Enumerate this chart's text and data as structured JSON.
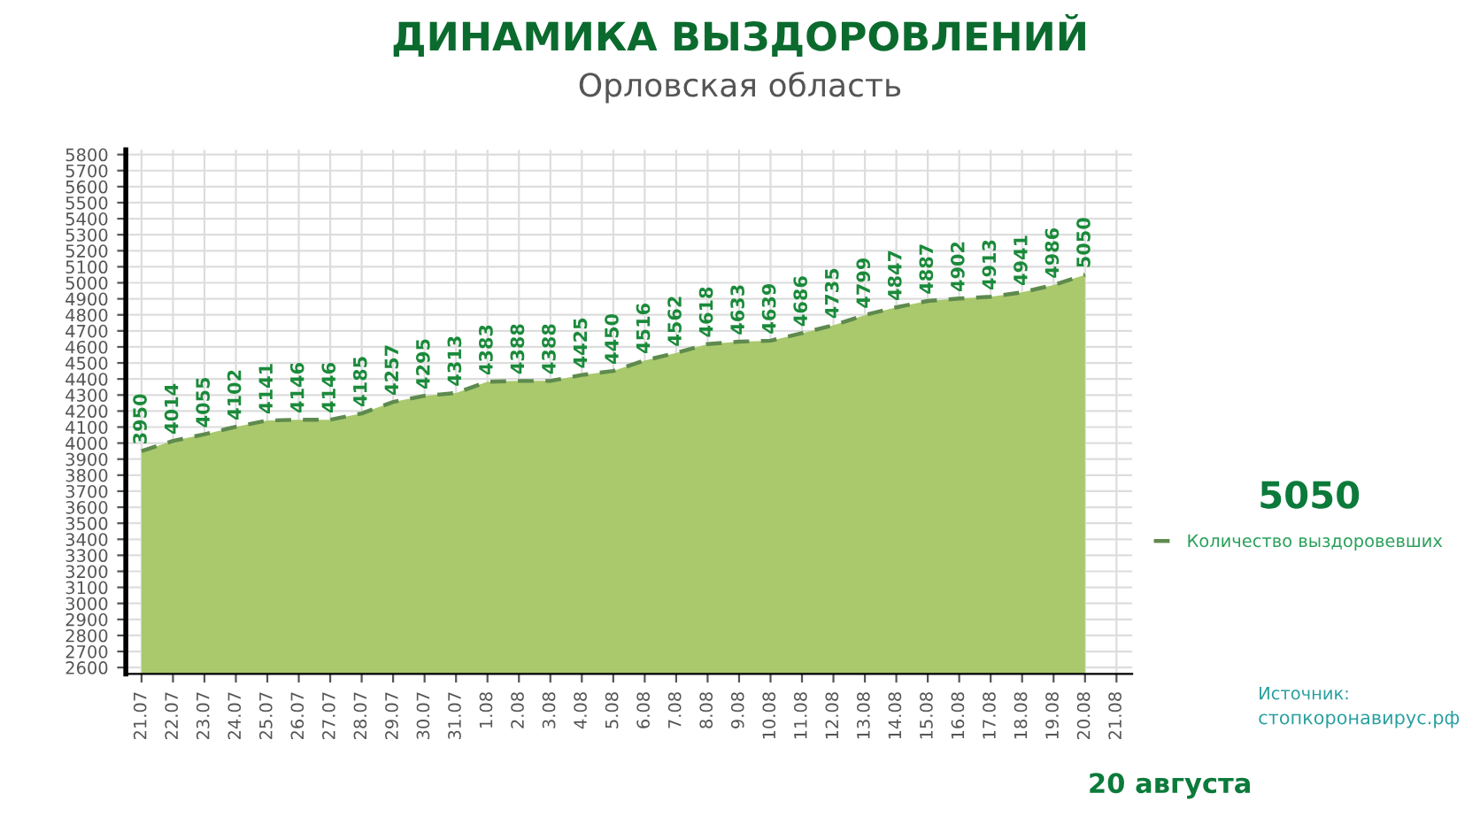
{
  "chart_data": {
    "type": "area",
    "title": "ДИНАМИКА ВЫЗДОРОВЛЕНИЙ",
    "subtitle": "Орловская область",
    "categories": [
      "21.07",
      "22.07",
      "23.07",
      "24.07",
      "25.07",
      "26.07",
      "27.07",
      "28.07",
      "29.07",
      "30.07",
      "31.07",
      "1.08",
      "2.08",
      "3.08",
      "4.08",
      "5.08",
      "6.08",
      "7.08",
      "8.08",
      "9.08",
      "10.08",
      "11.08",
      "12.08",
      "13.08",
      "14.08",
      "15.08",
      "16.08",
      "17.08",
      "18.08",
      "19.08",
      "20.08",
      "21.08"
    ],
    "series": [
      {
        "name": "Количество выздоровевших",
        "color": "#a9c96c",
        "values": [
          3950,
          4014,
          4055,
          4102,
          4141,
          4146,
          4146,
          4185,
          4257,
          4295,
          4313,
          4383,
          4388,
          4388,
          4425,
          4450,
          4516,
          4562,
          4618,
          4633,
          4639,
          4686,
          4735,
          4799,
          4847,
          4887,
          4902,
          4913,
          4941,
          4986,
          5050,
          null
        ]
      }
    ],
    "ylim": [
      2560,
      5830
    ],
    "yticks": [
      2600,
      2700,
      2800,
      2900,
      3000,
      3100,
      3200,
      3300,
      3400,
      3500,
      3600,
      3700,
      3800,
      3900,
      4000,
      4100,
      4200,
      4300,
      4400,
      4500,
      4600,
      4700,
      4800,
      4900,
      5000,
      5100,
      5200,
      5300,
      5400,
      5500,
      5600,
      5700,
      5800
    ],
    "data_labels": true,
    "line_style": "dashed",
    "grid": true,
    "legend": "right",
    "annotations": [
      "5050",
      "Источник:",
      "стопкоронавирус.рф",
      "20 августа"
    ]
  }
}
